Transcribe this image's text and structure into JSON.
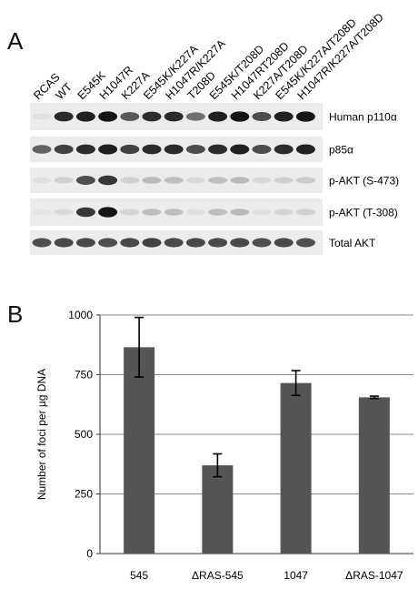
{
  "panels": {
    "a": "A",
    "b": "B"
  },
  "blot": {
    "lanes": [
      "RCAS",
      "WT",
      "E545K",
      "H1047R",
      "K227A",
      "E545K/K227A",
      "H1047R/K227A",
      "T208D",
      "E545K/T208D",
      "H1047RT208D",
      "K227A/T208D",
      "E545K/K227A/T208D",
      "H1047R/K227A/T208D"
    ],
    "rows": [
      {
        "label": "Human p110α",
        "intensity": [
          0.05,
          0.85,
          0.9,
          0.95,
          0.65,
          0.85,
          0.85,
          0.55,
          0.9,
          0.95,
          0.7,
          0.9,
          0.95
        ]
      },
      {
        "label": "p85α",
        "intensity": [
          0.6,
          0.75,
          0.85,
          0.9,
          0.75,
          0.85,
          0.85,
          0.7,
          0.85,
          0.9,
          0.7,
          0.85,
          0.9
        ]
      },
      {
        "label": "p-AKT (S-473)",
        "intensity": [
          0.05,
          0.12,
          0.7,
          0.8,
          0.12,
          0.22,
          0.2,
          0.08,
          0.2,
          0.22,
          0.08,
          0.12,
          0.15
        ]
      },
      {
        "label": "p-AKT (T-308)",
        "intensity": [
          0.03,
          0.08,
          0.8,
          0.95,
          0.1,
          0.2,
          0.2,
          0.05,
          0.2,
          0.22,
          0.05,
          0.1,
          0.12
        ]
      },
      {
        "label": "Total AKT",
        "intensity": [
          0.7,
          0.72,
          0.72,
          0.7,
          0.72,
          0.75,
          0.72,
          0.72,
          0.72,
          0.72,
          0.7,
          0.72,
          0.7
        ]
      }
    ]
  },
  "chart_data": {
    "type": "bar",
    "categories": [
      "545",
      "ΔRAS-545",
      "1047",
      "ΔRAS-1047"
    ],
    "series": [
      {
        "values": [
          865,
          370,
          715,
          655
        ],
        "errors": [
          125,
          48,
          52,
          5
        ]
      }
    ],
    "ylabel": "Number of foci per µg DNA",
    "ylim": [
      0,
      1000
    ],
    "yticks": [
      0,
      250,
      500,
      750,
      1000
    ],
    "grid": true,
    "bar_color": "#555555"
  }
}
